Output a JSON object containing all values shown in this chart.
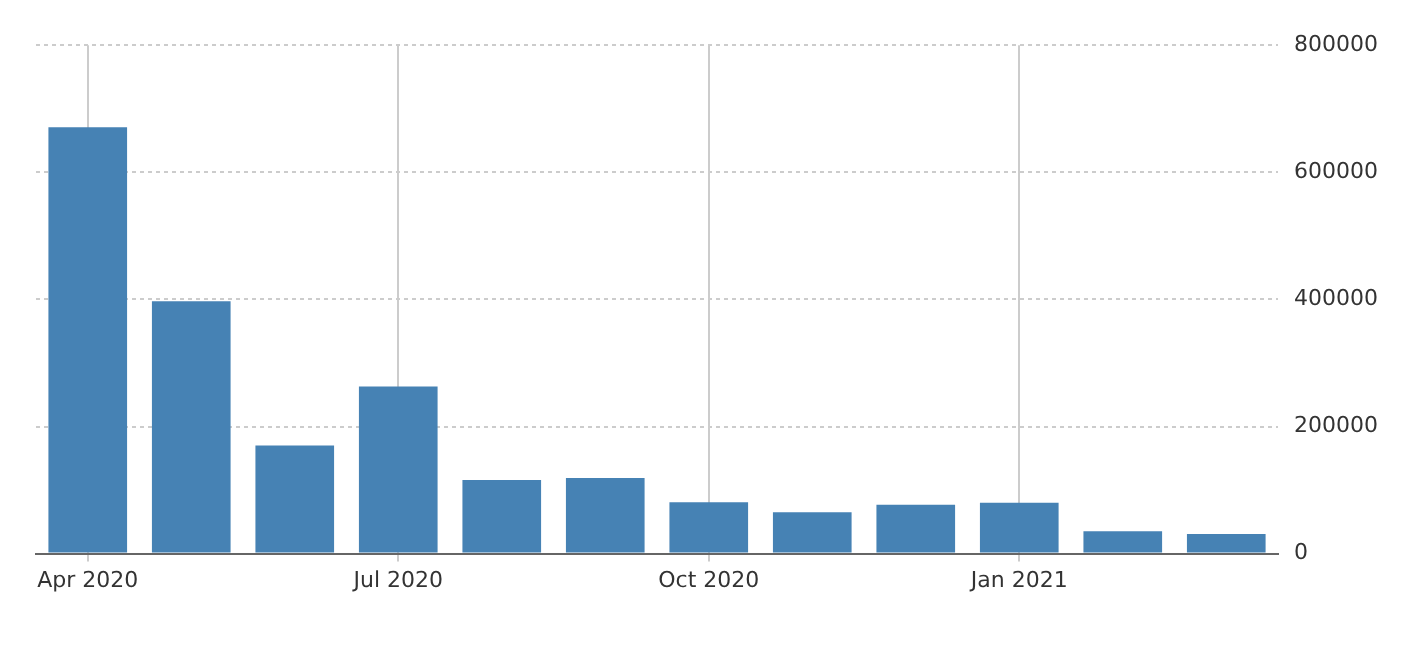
{
  "chart_data": {
    "type": "bar",
    "categories": [
      "Apr 2020",
      null,
      null,
      "Jul 2020",
      null,
      null,
      "Oct 2020",
      null,
      null,
      "Jan 2021",
      null,
      null
    ],
    "values": [
      671000,
      397000,
      170000,
      263000,
      116000,
      119000,
      81000,
      65000,
      77000,
      80000,
      35000,
      31000
    ],
    "color": "#4682b4",
    "ylim": [
      0,
      800000
    ],
    "yticks": [
      0,
      200000,
      400000,
      600000,
      800000
    ],
    "grid": true
  }
}
